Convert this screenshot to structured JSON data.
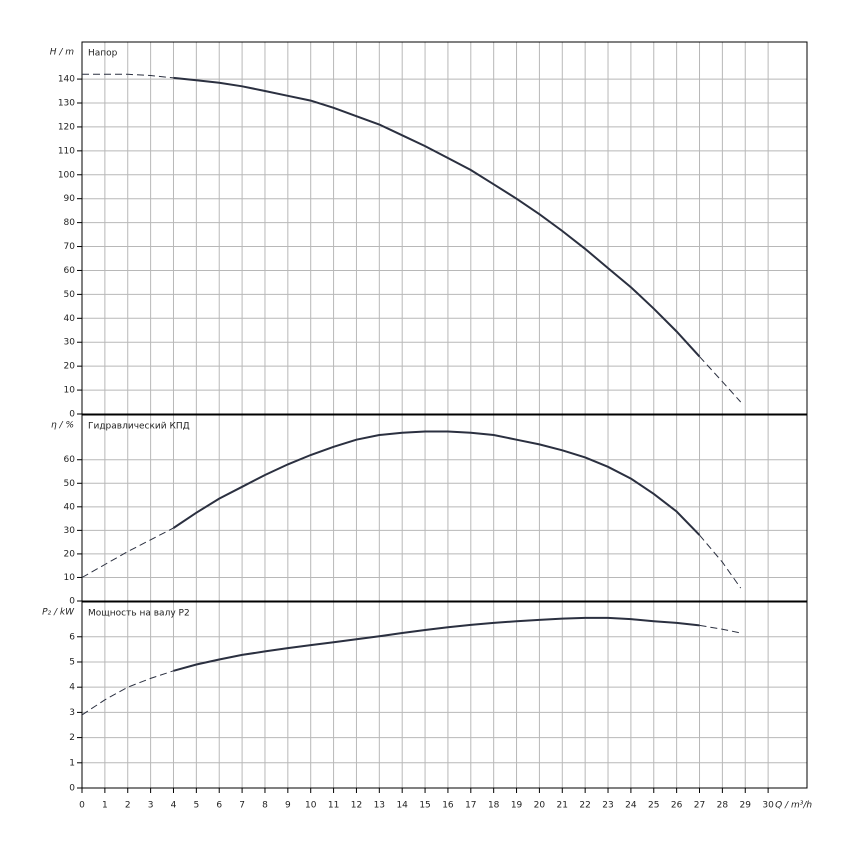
{
  "chart_data": [
    {
      "type": "line",
      "ylabel": "H / m",
      "title": "Напор",
      "x": [
        0,
        1,
        2,
        3,
        4,
        5,
        6,
        7,
        8,
        9,
        10,
        11,
        12,
        13,
        14,
        15,
        16,
        17,
        18,
        19,
        20,
        21,
        22,
        23,
        24,
        25,
        26,
        27,
        28,
        28.8
      ],
      "series": [
        {
          "style": "solid",
          "color": "#2b3040",
          "values": [
            null,
            null,
            null,
            null,
            140.5,
            139.5,
            138.5,
            137,
            135,
            133,
            131,
            128,
            124.5,
            121,
            116.5,
            112,
            107,
            102,
            96,
            90,
            83.5,
            76.5,
            69,
            61,
            53,
            44,
            34.5,
            24,
            null,
            null
          ]
        },
        {
          "style": "dashed",
          "color": "#2b3040",
          "values": [
            142,
            142,
            142,
            141.5,
            140.5,
            null,
            null,
            null,
            null,
            null,
            null,
            null,
            null,
            null,
            null,
            null,
            null,
            null,
            null,
            null,
            null,
            null,
            null,
            null,
            null,
            null,
            null,
            24,
            13.5,
            5
          ]
        }
      ],
      "xlim": [
        0,
        31.7
      ],
      "xticks": [
        0,
        1,
        2,
        3,
        4,
        5,
        6,
        7,
        8,
        9,
        10,
        11,
        12,
        13,
        14,
        15,
        16,
        17,
        18,
        19,
        20,
        21,
        22,
        23,
        24,
        25,
        26,
        27,
        28,
        29,
        30
      ],
      "ylim": [
        0,
        155.5
      ],
      "yticks": [
        0,
        10,
        20,
        30,
        40,
        50,
        60,
        70,
        80,
        90,
        100,
        110,
        120,
        130,
        140
      ],
      "grid": true
    },
    {
      "type": "line",
      "ylabel": "η / %",
      "title": "Гидравлический КПД",
      "x": [
        0,
        1,
        2,
        3,
        4,
        5,
        6,
        7,
        8,
        9,
        10,
        11,
        12,
        13,
        14,
        15,
        16,
        17,
        18,
        19,
        20,
        21,
        22,
        23,
        24,
        25,
        26,
        27,
        28,
        28.8
      ],
      "series": [
        {
          "style": "solid",
          "color": "#2b3040",
          "values": [
            null,
            null,
            null,
            null,
            31,
            37.5,
            43.5,
            48.5,
            53.5,
            58,
            62,
            65.5,
            68.5,
            70.5,
            71.5,
            72,
            72,
            71.5,
            70.5,
            68.5,
            66.5,
            64,
            61,
            57,
            52,
            45.5,
            38,
            28,
            null,
            null
          ]
        },
        {
          "style": "dashed",
          "color": "#2b3040",
          "values": [
            10,
            15.5,
            21,
            26,
            31,
            null,
            null,
            null,
            null,
            null,
            null,
            null,
            null,
            null,
            null,
            null,
            null,
            null,
            null,
            null,
            null,
            null,
            null,
            null,
            null,
            null,
            null,
            28,
            16.5,
            5.5
          ]
        }
      ],
      "xlim": [
        0,
        31.7
      ],
      "xticks": [
        0,
        1,
        2,
        3,
        4,
        5,
        6,
        7,
        8,
        9,
        10,
        11,
        12,
        13,
        14,
        15,
        16,
        17,
        18,
        19,
        20,
        21,
        22,
        23,
        24,
        25,
        26,
        27,
        28,
        29,
        30
      ],
      "ylim": [
        0,
        79
      ],
      "yticks": [
        0,
        10,
        20,
        30,
        40,
        50,
        60
      ],
      "grid": true
    },
    {
      "type": "line",
      "ylabel": "P₂ / kW",
      "title": "Мощность на валу P2",
      "xlabel": "Q / m³/h",
      "x": [
        0,
        1,
        2,
        3,
        4,
        5,
        6,
        7,
        8,
        9,
        10,
        11,
        12,
        13,
        14,
        15,
        16,
        17,
        18,
        19,
        20,
        21,
        22,
        23,
        24,
        25,
        26,
        27,
        28,
        28.8
      ],
      "series": [
        {
          "style": "solid",
          "color": "#2b3040",
          "values": [
            null,
            null,
            null,
            null,
            4.65,
            4.9,
            5.1,
            5.28,
            5.42,
            5.55,
            5.67,
            5.78,
            5.9,
            6.02,
            6.15,
            6.27,
            6.38,
            6.47,
            6.55,
            6.62,
            6.67,
            6.72,
            6.75,
            6.75,
            6.7,
            6.62,
            6.55,
            6.45,
            null,
            null
          ]
        },
        {
          "style": "dashed",
          "color": "#2b3040",
          "values": [
            2.9,
            3.5,
            4,
            4.35,
            4.65,
            null,
            null,
            null,
            null,
            null,
            null,
            null,
            null,
            null,
            null,
            null,
            null,
            null,
            null,
            null,
            null,
            null,
            null,
            null,
            null,
            null,
            null,
            6.45,
            6.3,
            6.15
          ]
        }
      ],
      "xlim": [
        0,
        31.7
      ],
      "xticks": [
        0,
        1,
        2,
        3,
        4,
        5,
        6,
        7,
        8,
        9,
        10,
        11,
        12,
        13,
        14,
        15,
        16,
        17,
        18,
        19,
        20,
        21,
        22,
        23,
        24,
        25,
        26,
        27,
        28,
        29,
        30
      ],
      "ylim": [
        0,
        7.38
      ],
      "yticks": [
        0,
        1,
        2,
        3,
        4,
        5,
        6
      ],
      "grid": true
    }
  ]
}
